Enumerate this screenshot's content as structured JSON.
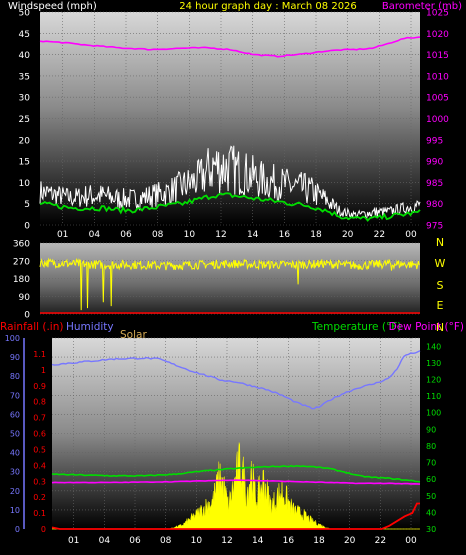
{
  "chart_data": [
    {
      "type": "line",
      "title": "24 hour graph day : March 08 2026",
      "left_label": "Windspeed (mph)",
      "right_label": "Barometer (mb)",
      "x_ticks": [
        "01",
        "04",
        "06",
        "08",
        "10",
        "12",
        "14",
        "16",
        "18",
        "20",
        "22",
        "00"
      ],
      "y_left_ticks": [
        0,
        5,
        10,
        15,
        20,
        25,
        30,
        35,
        40,
        45,
        50
      ],
      "y_left_range": [
        0,
        50
      ],
      "y_right_ticks": [
        975,
        980,
        985,
        990,
        995,
        1000,
        1005,
        1010,
        1015,
        1020,
        1025
      ],
      "y_right_range": [
        975,
        1025
      ],
      "x_range_hours": [
        0,
        24
      ],
      "colors": {
        "gust": "#ffffff",
        "wind_avg": "#00dd00",
        "barometer": "#ff00ff",
        "title": "#ffff00"
      },
      "series": [
        {
          "name": "Barometer (mb)",
          "axis": "right",
          "points": [
            [
              0,
              1018.2
            ],
            [
              1.5,
              1017.8
            ],
            [
              3,
              1017.2
            ],
            [
              5,
              1016.6
            ],
            [
              7,
              1016.2
            ],
            [
              9,
              1016.5
            ],
            [
              10.5,
              1016.6
            ],
            [
              12,
              1016.2
            ],
            [
              13.5,
              1015.0
            ],
            [
              15,
              1014.6
            ],
            [
              16.5,
              1015.1
            ],
            [
              18,
              1015.8
            ],
            [
              19,
              1016.1
            ],
            [
              20,
              1016.2
            ],
            [
              21,
              1016.5
            ],
            [
              22,
              1017.6
            ],
            [
              23,
              1018.8
            ],
            [
              24,
              1019.1
            ]
          ]
        },
        {
          "axis": "left",
          "points": [
            [
              0,
              10
            ],
            [
              1,
              9
            ],
            [
              2,
              8
            ],
            [
              3,
              9
            ],
            [
              4,
              9
            ],
            [
              5,
              8
            ],
            [
              6,
              8
            ],
            [
              7,
              9
            ],
            [
              8,
              10
            ],
            [
              9,
              12
            ],
            [
              10,
              14
            ],
            [
              11,
              19
            ],
            [
              12,
              18
            ],
            [
              13,
              16
            ],
            [
              14,
              14
            ],
            [
              15,
              13
            ],
            [
              16,
              12
            ],
            [
              17,
              11
            ],
            [
              18,
              8
            ],
            [
              19,
              4
            ],
            [
              20,
              3
            ],
            [
              21,
              4
            ],
            [
              22,
              4
            ],
            [
              23,
              5
            ],
            [
              24,
              6
            ]
          ]
        },
        {
          "axis": "left",
          "points": [
            [
              0,
              5
            ],
            [
              1,
              4.5
            ],
            [
              2,
              4
            ],
            [
              3,
              4
            ],
            [
              4,
              4
            ],
            [
              5,
              3.5
            ],
            [
              6,
              3.5
            ],
            [
              7,
              4
            ],
            [
              8,
              4.5
            ],
            [
              9,
              5
            ],
            [
              10,
              6
            ],
            [
              11,
              7
            ],
            [
              12,
              7
            ],
            [
              13,
              6.5
            ],
            [
              14,
              6
            ],
            [
              15,
              5.5
            ],
            [
              16,
              5
            ],
            [
              17,
              4.5
            ],
            [
              18,
              3.5
            ],
            [
              19,
              2
            ],
            [
              20,
              1.5
            ],
            [
              21,
              1.5
            ],
            [
              22,
              2
            ],
            [
              23,
              2.5
            ],
            [
              24,
              3
            ]
          ]
        }
      ]
    },
    {
      "type": "line",
      "y_left_ticks": [
        0,
        90,
        180,
        270,
        360
      ],
      "y_left_range": [
        0,
        360
      ],
      "compass_labels": [
        "N",
        "W",
        "S",
        "E",
        "N"
      ],
      "x_range_hours": [
        0,
        24
      ],
      "colors": {
        "direction": "#ffff00",
        "compass": "#ffff00"
      },
      "series": [
        {
          "axis": "left",
          "points": [
            [
              0,
              260
            ],
            [
              2,
              255
            ],
            [
              4,
              250
            ],
            [
              6,
              250
            ],
            [
              8,
              245
            ],
            [
              10,
              250
            ],
            [
              12,
              255
            ],
            [
              14,
              250
            ],
            [
              16,
              250
            ],
            [
              18,
              255
            ],
            [
              20,
              245
            ],
            [
              22,
              255
            ],
            [
              24,
              250
            ]
          ],
          "dips": [
            [
              2.6,
              20
            ],
            [
              3.0,
              30
            ],
            [
              4.0,
              60
            ],
            [
              4.5,
              40
            ],
            [
              16.3,
              150
            ],
            [
              22.2,
              220
            ]
          ]
        }
      ]
    },
    {
      "type": "area",
      "labels": {
        "rainfall": "Rainfall (.in)",
        "humidity": "Humidity",
        "solar": "Solar",
        "temperature": "Temperature (°F)",
        "dew_point": "Dew Point (°F)"
      },
      "x_ticks": [
        "01",
        "04",
        "06",
        "08",
        "10",
        "12",
        "14",
        "16",
        "18",
        "20",
        "22",
        "00"
      ],
      "y_humidity_ticks": [
        0,
        10,
        20,
        30,
        40,
        50,
        60,
        70,
        80,
        90,
        100
      ],
      "y_humidity_range": [
        0,
        100
      ],
      "y_rain_ticks": [
        0,
        0.1,
        0.2,
        0.3,
        0.4,
        0.5,
        0.6,
        0.7,
        0.8,
        0.9,
        1,
        1.1
      ],
      "y_rain_range": [
        0,
        1.2
      ],
      "y_temp_ticks": [
        30,
        40,
        50,
        60,
        70,
        80,
        90,
        100,
        110,
        120,
        130,
        140
      ],
      "y_temp_range": [
        30,
        145
      ],
      "x_range_hours": [
        0,
        24
      ],
      "colors": {
        "rainfall": "#ff0000",
        "humidity": "#7777ff",
        "solar": "#ffff00",
        "solar_label": "#d4aa55",
        "temperature": "#00dd00",
        "dew_point": "#ff00ff"
      },
      "series": [
        {
          "name": "Humidity",
          "axis": "humidity",
          "points": [
            [
              0,
              86
            ],
            [
              2,
              87.5
            ],
            [
              4,
              89
            ],
            [
              6,
              89.5
            ],
            [
              7,
              89
            ],
            [
              8,
              86
            ],
            [
              9,
              83
            ],
            [
              10,
              80.5
            ],
            [
              11,
              78
            ],
            [
              12,
              77
            ],
            [
              13,
              75
            ],
            [
              14,
              73
            ],
            [
              15,
              70
            ],
            [
              16,
              66
            ],
            [
              17,
              63
            ],
            [
              17.5,
              64
            ],
            [
              18,
              67
            ],
            [
              19,
              71
            ],
            [
              20,
              74
            ],
            [
              21,
              76
            ],
            [
              22,
              79
            ],
            [
              22.5,
              84
            ],
            [
              23,
              91
            ],
            [
              24,
              93
            ]
          ]
        },
        {
          "name": "Temperature (°F)",
          "axis": "temp",
          "points": [
            [
              0,
              63
            ],
            [
              2,
              62.5
            ],
            [
              4,
              62
            ],
            [
              6,
              62
            ],
            [
              8,
              63
            ],
            [
              10,
              65
            ],
            [
              12,
              66.5
            ],
            [
              14,
              67.5
            ],
            [
              16,
              68
            ],
            [
              17,
              67.5
            ],
            [
              18,
              66.5
            ],
            [
              19,
              64.5
            ],
            [
              20,
              62
            ],
            [
              21,
              61
            ],
            [
              22,
              60.5
            ],
            [
              23,
              59.5
            ],
            [
              24,
              58.5
            ]
          ]
        },
        {
          "name": "Dew Point (°F)",
          "axis": "temp",
          "points": [
            [
              0,
              58
            ],
            [
              4,
              58
            ],
            [
              8,
              58.5
            ],
            [
              10,
              59
            ],
            [
              12,
              59.5
            ],
            [
              14,
              59
            ],
            [
              16,
              58.5
            ],
            [
              18,
              58
            ],
            [
              20,
              57.5
            ],
            [
              22,
              57.5
            ],
            [
              24,
              57
            ]
          ]
        },
        {
          "name": "Rainfall (.in)",
          "axis": "rain",
          "points": [
            [
              0,
              0.01
            ],
            [
              0.5,
              0.0
            ],
            [
              21.5,
              0.0
            ],
            [
              22,
              0.02
            ],
            [
              23,
              0.08
            ],
            [
              23.5,
              0.1
            ],
            [
              23.8,
              0.16
            ],
            [
              24,
              0.16
            ]
          ]
        },
        {
          "name": "Solar",
          "axis": "humidity",
          "points": [
            [
              0,
              0
            ],
            [
              7.6,
              0
            ],
            [
              8.5,
              2
            ],
            [
              9.5,
              8
            ],
            [
              10.5,
              15
            ],
            [
              11.0,
              28
            ],
            [
              11.5,
              12
            ],
            [
              12.3,
              35
            ],
            [
              12.7,
              18
            ],
            [
              13.0,
              30
            ],
            [
              13.3,
              15
            ],
            [
              13.8,
              25
            ],
            [
              14.3,
              12
            ],
            [
              15.0,
              20
            ],
            [
              15.7,
              10
            ],
            [
              16.3,
              8
            ],
            [
              17.0,
              4
            ],
            [
              17.8,
              1
            ],
            [
              18.2,
              0
            ],
            [
              24,
              0
            ]
          ]
        }
      ]
    }
  ]
}
